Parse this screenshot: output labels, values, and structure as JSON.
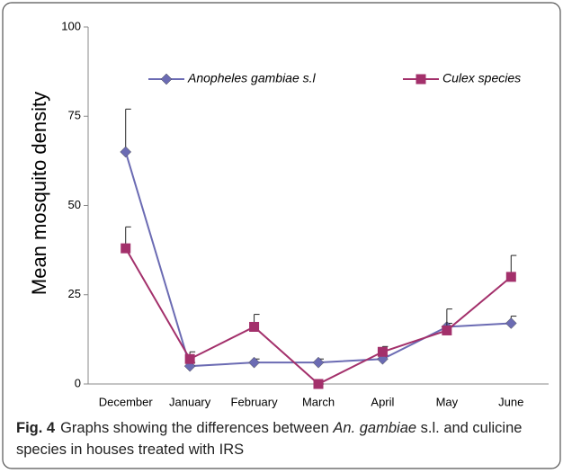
{
  "chart_data": {
    "type": "line",
    "categories": [
      "December",
      "January",
      "February",
      "March",
      "April",
      "May",
      "June"
    ],
    "series": [
      {
        "name": "Anopheles gambiae s.l",
        "color": "#6b6bb3",
        "marker": "diamond",
        "values": [
          65,
          5,
          6,
          6,
          7,
          16,
          17
        ],
        "errors": [
          12,
          1,
          1,
          1,
          1,
          1,
          2
        ]
      },
      {
        "name": "Culex species",
        "color": "#a3306b",
        "marker": "square",
        "values": [
          38,
          7,
          16,
          0,
          9,
          15,
          30
        ],
        "errors": [
          6,
          2,
          3.5,
          0,
          1.5,
          6,
          6
        ]
      }
    ],
    "ylabel": "Mean mosquito density",
    "ylim": [
      0,
      100
    ],
    "yticks": [
      0,
      25,
      50,
      75,
      100
    ],
    "grid": false,
    "legend": "top",
    "caption": {
      "label": "Fig. 4",
      "text_before": "Graphs showing the differences between ",
      "italic": "An. gambiae",
      "text_after": " s.l. and culicine species in houses treated with IRS"
    }
  }
}
